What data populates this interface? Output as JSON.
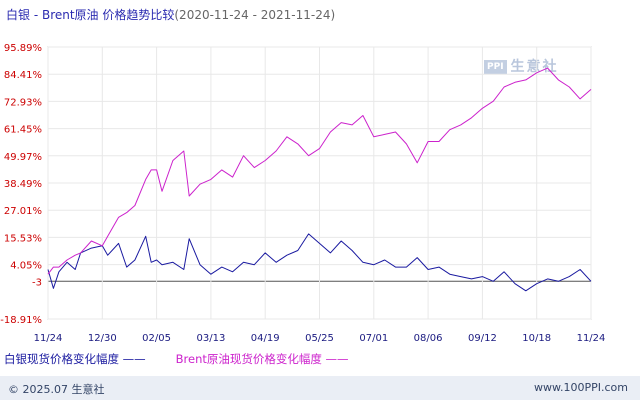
{
  "header": {
    "title": "白银 - Brent原油 价格趋势比较",
    "date_range": "(2020-11-24 - 2021-11-24)"
  },
  "watermark": {
    "logo": "PPI",
    "text": "生意社"
  },
  "legend": {
    "silver": "白银现货价格变化幅度 ——",
    "brent": "Brent原油现货价格变化幅度 ——"
  },
  "footer": {
    "copyright": "© 2025.07 生意社",
    "site": "www.100PPI.com"
  },
  "colors": {
    "silver": "#1a1aa0",
    "brent": "#cc22cc",
    "axis_labels": "#cc0000",
    "zero_line": "#555555",
    "grid": "#e8e8e8"
  },
  "chart_data": {
    "type": "line",
    "title": "白银 - Brent原油 价格趋势比较",
    "ylim": [
      -18.91,
      95.89
    ],
    "y_ticks": [
      95.89,
      84.41,
      72.93,
      61.45,
      49.97,
      38.49,
      27.01,
      15.53,
      4.05,
      -3,
      -18.91
    ],
    "y_tick_labels": [
      "95.89%",
      "84.41%",
      "72.93%",
      "61.45%",
      "49.97%",
      "38.49%",
      "27.01%",
      "15.53%",
      "4.05%",
      "-3",
      "-18.91%"
    ],
    "x_ticks": [
      "11/24",
      "12/30",
      "02/05",
      "03/13",
      "04/19",
      "05/25",
      "07/01",
      "08/06",
      "09/12",
      "10/18",
      "11/24"
    ],
    "grid": true,
    "baseline": -3,
    "series": [
      {
        "name": "白银现货价格变化幅度",
        "key": "silver",
        "x": [
          0,
          0.1,
          0.2,
          0.35,
          0.5,
          0.6,
          0.8,
          1.0,
          1.1,
          1.3,
          1.45,
          1.6,
          1.8,
          1.9,
          2.0,
          2.1,
          2.3,
          2.5,
          2.6,
          2.8,
          3.0,
          3.2,
          3.4,
          3.6,
          3.8,
          4.0,
          4.2,
          4.4,
          4.6,
          4.8,
          5.0,
          5.2,
          5.4,
          5.6,
          5.8,
          6.0,
          6.2,
          6.4,
          6.6,
          6.8,
          7.0,
          7.2,
          7.4,
          7.6,
          7.8,
          8.0,
          8.2,
          8.4,
          8.6,
          8.8,
          9.0,
          9.2,
          9.4,
          9.6,
          9.8,
          10.0
        ],
        "values": [
          2,
          -6,
          1,
          5,
          2,
          9,
          11,
          12,
          8,
          13,
          3,
          6,
          16,
          5,
          6,
          4,
          5,
          2,
          15,
          4,
          0,
          3,
          1,
          5,
          4,
          9,
          5,
          8,
          10,
          17,
          13,
          9,
          14,
          10,
          5,
          4,
          6,
          3,
          3,
          7,
          2,
          3,
          0,
          -1,
          -2,
          -1,
          -3,
          1,
          -4,
          -7,
          -4,
          -2,
          -3,
          -1,
          2,
          -3
        ]
      },
      {
        "name": "Brent原油现货价格变化幅度",
        "key": "brent",
        "x": [
          0,
          0.1,
          0.2,
          0.35,
          0.5,
          0.6,
          0.8,
          1.0,
          1.1,
          1.3,
          1.45,
          1.6,
          1.8,
          1.9,
          2.0,
          2.1,
          2.3,
          2.5,
          2.6,
          2.8,
          3.0,
          3.2,
          3.4,
          3.6,
          3.8,
          4.0,
          4.2,
          4.4,
          4.6,
          4.8,
          5.0,
          5.2,
          5.4,
          5.6,
          5.8,
          6.0,
          6.2,
          6.4,
          6.6,
          6.8,
          7.0,
          7.2,
          7.4,
          7.6,
          7.8,
          8.0,
          8.2,
          8.4,
          8.6,
          8.8,
          9.0,
          9.2,
          9.4,
          9.6,
          9.8,
          10.0
        ],
        "values": [
          0,
          3,
          3,
          6,
          8,
          9,
          14,
          12,
          16,
          24,
          26,
          29,
          40,
          44,
          44,
          35,
          48,
          52,
          33,
          38,
          40,
          44,
          41,
          50,
          45,
          48,
          52,
          58,
          55,
          50,
          53,
          60,
          64,
          63,
          67,
          58,
          59,
          60,
          55,
          47,
          56,
          56,
          61,
          63,
          66,
          70,
          73,
          79,
          81,
          82,
          85,
          87,
          82,
          79,
          74,
          78
        ]
      }
    ]
  }
}
